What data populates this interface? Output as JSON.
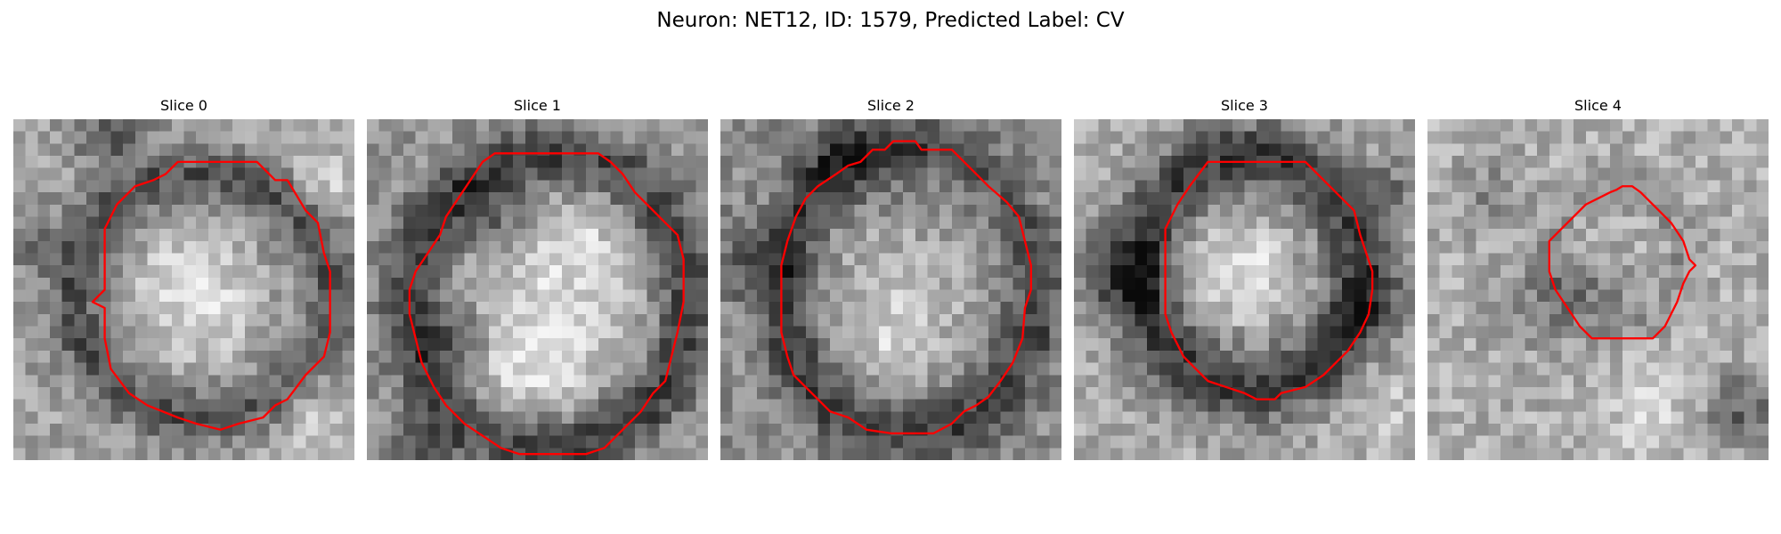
{
  "figure": {
    "title": "Neuron: NET12, ID: 1579, Predicted Label: CV"
  },
  "style": {
    "contour_color": "#ff0000"
  },
  "panels": [
    {
      "title": "Slice 0",
      "contour": [
        [
          13.5,
          3.5
        ],
        [
          20.0,
          3.5
        ],
        [
          21.5,
          5.0
        ],
        [
          22.5,
          5.0
        ],
        [
          24.0,
          7.5
        ],
        [
          25.0,
          8.5
        ],
        [
          25.5,
          11.0
        ],
        [
          26.0,
          12.5
        ],
        [
          26.0,
          17.5
        ],
        [
          25.5,
          19.5
        ],
        [
          24.0,
          21.0
        ],
        [
          22.5,
          23.0
        ],
        [
          21.5,
          23.5
        ],
        [
          20.5,
          24.5
        ],
        [
          18.5,
          25.0
        ],
        [
          17.0,
          25.5
        ],
        [
          15.0,
          25.0
        ],
        [
          13.5,
          24.5
        ],
        [
          11.0,
          23.5
        ],
        [
          9.5,
          22.5
        ],
        [
          8.0,
          20.5
        ],
        [
          7.5,
          18.0
        ],
        [
          7.5,
          15.5
        ],
        [
          6.5,
          15.0
        ],
        [
          7.5,
          14.0
        ],
        [
          7.5,
          9.0
        ],
        [
          8.5,
          7.0
        ],
        [
          10.0,
          5.5
        ],
        [
          11.5,
          5.0
        ],
        [
          12.5,
          4.5
        ]
      ]
    },
    {
      "title": "Slice 1",
      "contour": [
        [
          10.5,
          2.8
        ],
        [
          19.0,
          2.8
        ],
        [
          20.0,
          3.5
        ],
        [
          21.0,
          4.5
        ],
        [
          22.0,
          6.0
        ],
        [
          23.0,
          7.0
        ],
        [
          24.5,
          8.5
        ],
        [
          25.5,
          9.5
        ],
        [
          26.0,
          11.5
        ],
        [
          26.0,
          15.0
        ],
        [
          25.5,
          17.5
        ],
        [
          25.0,
          19.5
        ],
        [
          24.5,
          21.5
        ],
        [
          23.5,
          22.5
        ],
        [
          22.5,
          24.0
        ],
        [
          21.0,
          25.5
        ],
        [
          19.5,
          27.0
        ],
        [
          18.0,
          27.5
        ],
        [
          12.5,
          27.5
        ],
        [
          11.0,
          27.0
        ],
        [
          9.5,
          26.0
        ],
        [
          8.0,
          25.0
        ],
        [
          6.5,
          23.5
        ],
        [
          5.5,
          22.0
        ],
        [
          4.5,
          20.0
        ],
        [
          4.0,
          18.0
        ],
        [
          3.5,
          16.0
        ],
        [
          3.5,
          14.0
        ],
        [
          4.0,
          12.5
        ],
        [
          5.0,
          11.0
        ],
        [
          6.0,
          9.5
        ],
        [
          6.5,
          8.0
        ],
        [
          7.5,
          6.5
        ],
        [
          8.5,
          5.0
        ],
        [
          9.5,
          3.5
        ]
      ]
    },
    {
      "title": "Slice 2",
      "contour": [
        [
          14.2,
          1.8
        ],
        [
          16.0,
          1.8
        ],
        [
          16.5,
          2.5
        ],
        [
          19.0,
          2.5
        ],
        [
          20.5,
          4.0
        ],
        [
          22.0,
          5.5
        ],
        [
          23.5,
          6.8
        ],
        [
          24.5,
          8.0
        ],
        [
          25.0,
          10.0
        ],
        [
          25.5,
          12.0
        ],
        [
          25.5,
          14.0
        ],
        [
          25.0,
          15.5
        ],
        [
          24.8,
          18.0
        ],
        [
          24.0,
          20.0
        ],
        [
          23.0,
          21.5
        ],
        [
          22.0,
          22.8
        ],
        [
          21.0,
          23.5
        ],
        [
          20.0,
          24.0
        ],
        [
          19.0,
          25.0
        ],
        [
          17.5,
          25.8
        ],
        [
          14.0,
          25.8
        ],
        [
          12.0,
          25.5
        ],
        [
          10.5,
          24.5
        ],
        [
          9.0,
          24.0
        ],
        [
          8.0,
          23.0
        ],
        [
          7.0,
          22.0
        ],
        [
          6.0,
          21.0
        ],
        [
          5.5,
          19.5
        ],
        [
          5.0,
          17.5
        ],
        [
          5.0,
          12.0
        ],
        [
          5.5,
          10.0
        ],
        [
          6.2,
          8.0
        ],
        [
          7.0,
          6.5
        ],
        [
          8.0,
          5.5
        ],
        [
          9.5,
          4.5
        ],
        [
          10.5,
          3.8
        ],
        [
          11.5,
          3.5
        ],
        [
          12.5,
          2.5
        ],
        [
          13.5,
          2.5
        ]
      ]
    },
    {
      "title": "Slice 3",
      "contour": [
        [
          11.0,
          3.5
        ],
        [
          19.0,
          3.5
        ],
        [
          20.5,
          5.0
        ],
        [
          22.0,
          6.5
        ],
        [
          23.0,
          7.5
        ],
        [
          23.5,
          9.5
        ],
        [
          24.0,
          11.0
        ],
        [
          24.5,
          12.5
        ],
        [
          24.5,
          14.0
        ],
        [
          24.2,
          16.0
        ],
        [
          23.5,
          17.5
        ],
        [
          22.5,
          19.0
        ],
        [
          21.5,
          20.0
        ],
        [
          20.5,
          21.0
        ],
        [
          19.0,
          22.0
        ],
        [
          17.0,
          22.5
        ],
        [
          16.5,
          23.0
        ],
        [
          15.0,
          23.0
        ],
        [
          14.0,
          22.5
        ],
        [
          12.5,
          22.0
        ],
        [
          11.0,
          21.5
        ],
        [
          10.0,
          20.5
        ],
        [
          9.0,
          19.5
        ],
        [
          8.0,
          17.5
        ],
        [
          7.5,
          16.0
        ],
        [
          7.5,
          9.0
        ],
        [
          8.5,
          7.0
        ],
        [
          9.5,
          5.5
        ]
      ]
    },
    {
      "title": "Slice 4",
      "contour": [
        [
          16.0,
          5.5
        ],
        [
          16.8,
          5.5
        ],
        [
          17.5,
          6.0
        ],
        [
          18.0,
          6.5
        ],
        [
          19.0,
          7.5
        ],
        [
          20.0,
          8.5
        ],
        [
          21.0,
          10.0
        ],
        [
          21.5,
          11.5
        ],
        [
          22.0,
          12.0
        ],
        [
          21.5,
          12.5
        ],
        [
          21.0,
          13.5
        ],
        [
          20.5,
          15.0
        ],
        [
          20.0,
          16.0
        ],
        [
          19.5,
          17.0
        ],
        [
          18.5,
          18.0
        ],
        [
          13.5,
          18.0
        ],
        [
          12.5,
          17.0
        ],
        [
          11.5,
          15.5
        ],
        [
          10.5,
          14.0
        ],
        [
          10.0,
          12.5
        ],
        [
          10.0,
          10.0
        ],
        [
          11.0,
          9.0
        ],
        [
          12.0,
          8.0
        ],
        [
          13.0,
          7.0
        ],
        [
          14.0,
          6.5
        ],
        [
          15.0,
          6.0
        ],
        [
          15.5,
          5.8
        ]
      ]
    }
  ]
}
